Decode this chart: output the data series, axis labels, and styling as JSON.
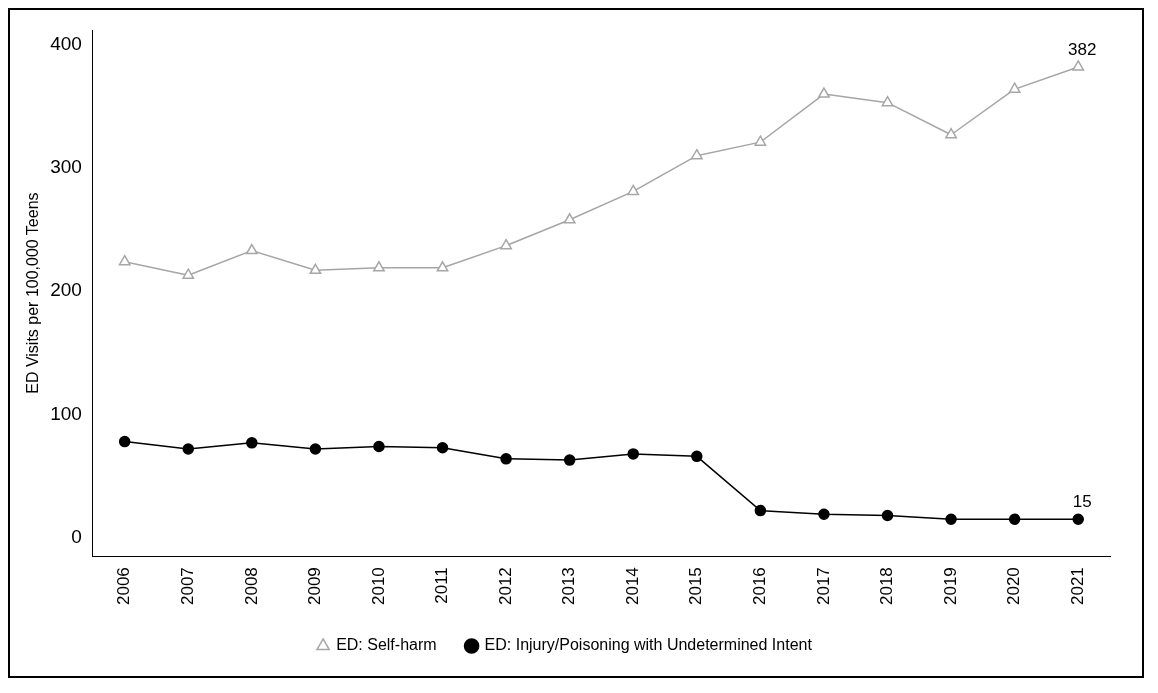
{
  "chart_data": {
    "type": "line",
    "ylabel": "ED Visits per 100,000 Teens",
    "categories": [
      "2006",
      "2007",
      "2008",
      "2009",
      "2010",
      "2011",
      "2012",
      "2013",
      "2014",
      "2015",
      "2016",
      "2017",
      "2018",
      "2019",
      "2020",
      "2021"
    ],
    "series": [
      {
        "name": "ED: Self-harm",
        "color": "#a6a6a6",
        "marker": "triangle",
        "values": [
          224,
          213,
          233,
          217,
          219,
          219,
          237,
          258,
          281,
          310,
          321,
          360,
          353,
          327,
          364,
          382
        ]
      },
      {
        "name": "ED: Injury/Poisoning with Undetermined Intent",
        "color": "#000000",
        "marker": "circle",
        "values": [
          78,
          72,
          77,
          72,
          74,
          73,
          64,
          63,
          68,
          66,
          22,
          19,
          18,
          15,
          15,
          15
        ]
      }
    ],
    "annotations": [
      {
        "text": "382",
        "x": "2021",
        "y": 382
      },
      {
        "text": "15",
        "x": "2021",
        "y": 15
      }
    ],
    "ylim": [
      -15,
      412
    ],
    "yticks": [
      0,
      100,
      200,
      300,
      400
    ],
    "grid": false,
    "legend": "bottom"
  }
}
